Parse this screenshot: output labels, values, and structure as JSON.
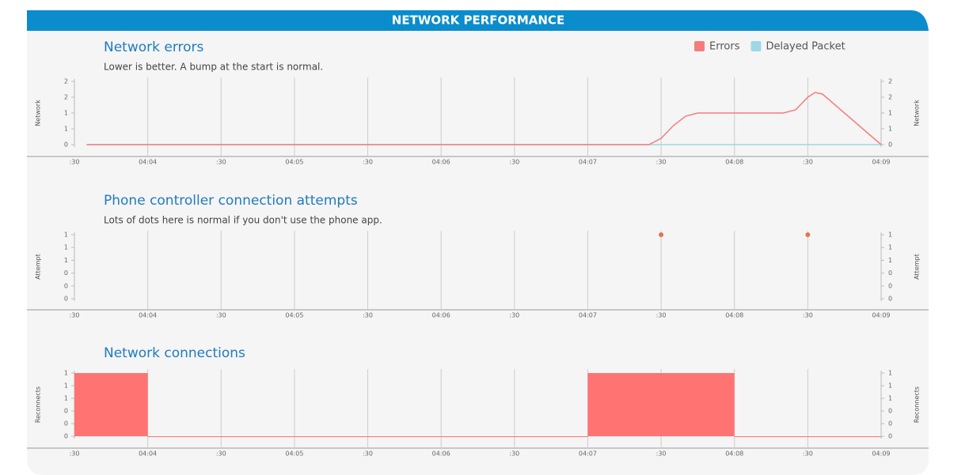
{
  "header": {
    "title": "NETWORK PERFORMANCE"
  },
  "chart_data": [
    {
      "type": "line",
      "title": "Network errors",
      "subtitle": "Lower is better. A bump at the start is normal.",
      "ylabel": "Network",
      "y2label": "Network",
      "legend": "top-right",
      "x": [
        "04:03:35",
        "04:07:25",
        "04:07:30",
        "04:07:35",
        "04:07:40",
        "04:07:45",
        "04:08:20",
        "04:08:25",
        "04:08:30",
        "04:08:33",
        "04:08:36",
        "04:09:00"
      ],
      "series": [
        {
          "name": "Errors",
          "color": "#f47c7c",
          "values": [
            0,
            0,
            0.2,
            0.6,
            0.9,
            1,
            1,
            1.1,
            1.5,
            1.65,
            1.6,
            0
          ]
        },
        {
          "name": "Delayed Packet",
          "color": "#9ed8e6",
          "values": [
            0,
            0,
            0,
            0,
            0,
            0,
            0,
            0,
            0,
            0,
            0,
            0
          ]
        }
      ],
      "xlim": [
        "04:03:30",
        "04:09:00"
      ],
      "xticks": [
        {
          "value": "04:03:30",
          "label": ":30"
        },
        {
          "value": "04:04:00",
          "label": "04:04"
        },
        {
          "value": "04:04:30",
          "label": ":30"
        },
        {
          "value": "04:05:00",
          "label": "04:05"
        },
        {
          "value": "04:05:30",
          "label": ":30"
        },
        {
          "value": "04:06:00",
          "label": "04:06"
        },
        {
          "value": "04:06:30",
          "label": ":30"
        },
        {
          "value": "04:07:00",
          "label": "04:07"
        },
        {
          "value": "04:07:30",
          "label": ":30"
        },
        {
          "value": "04:08:00",
          "label": "04:08"
        },
        {
          "value": "04:08:30",
          "label": ":30"
        },
        {
          "value": "04:09:00",
          "label": "04:09"
        }
      ],
      "ylim": [
        0,
        2
      ],
      "yticks": [
        0,
        {
          "value": 0.5,
          "label": "1"
        },
        1,
        {
          "value": 1.5,
          "label": "2"
        },
        2
      ],
      "y2lim": [
        0,
        2
      ],
      "y2ticks": [
        0,
        {
          "value": 0.5,
          "label": "1"
        },
        1,
        {
          "value": 1.5,
          "label": "2"
        },
        2
      ],
      "grid": true
    },
    {
      "type": "scatter",
      "title": "Phone controller connection attempts",
      "subtitle": "Lots of dots here is normal if you don't use the phone app.",
      "ylabel": "Attempt",
      "y2label": "Attempt",
      "color": "#e8734a",
      "x": [
        "04:07:30",
        "04:08:30"
      ],
      "values": [
        1,
        1
      ],
      "xlim": [
        "04:03:30",
        "04:09:00"
      ],
      "xticks": [
        {
          "value": "04:03:30",
          "label": ":30"
        },
        {
          "value": "04:04:00",
          "label": "04:04"
        },
        {
          "value": "04:04:30",
          "label": ":30"
        },
        {
          "value": "04:05:00",
          "label": "04:05"
        },
        {
          "value": "04:05:30",
          "label": ":30"
        },
        {
          "value": "04:06:00",
          "label": "04:06"
        },
        {
          "value": "04:06:30",
          "label": ":30"
        },
        {
          "value": "04:07:00",
          "label": "04:07"
        },
        {
          "value": "04:07:30",
          "label": ":30"
        },
        {
          "value": "04:08:00",
          "label": "04:08"
        },
        {
          "value": "04:08:30",
          "label": ":30"
        },
        {
          "value": "04:09:00",
          "label": "04:09"
        }
      ],
      "ylim": [
        0,
        1
      ],
      "yticks": [
        0,
        {
          "value": 0.2,
          "label": "0"
        },
        {
          "value": 0.4,
          "label": "0"
        },
        {
          "value": 0.6,
          "label": "1"
        },
        {
          "value": 0.8,
          "label": "1"
        },
        1
      ],
      "y2lim": [
        0,
        1
      ],
      "y2ticks": [
        0,
        {
          "value": 0.2,
          "label": "0"
        },
        {
          "value": 0.4,
          "label": "0"
        },
        {
          "value": 0.6,
          "label": "1"
        },
        {
          "value": 0.8,
          "label": "1"
        },
        1
      ],
      "grid": true
    },
    {
      "type": "area",
      "title": "Network connections",
      "ylabel": "Reconnects",
      "y2label": "Reconnects",
      "color": "#ff7373",
      "step": "post",
      "x": [
        "04:03:30",
        "04:04:00",
        "04:07:00",
        "04:08:00",
        "04:09:00"
      ],
      "values": [
        1,
        0,
        1,
        0,
        0
      ],
      "xlim": [
        "04:03:30",
        "04:09:00"
      ],
      "xticks": [
        {
          "value": "04:03:30",
          "label": ":30"
        },
        {
          "value": "04:04:00",
          "label": "04:04"
        },
        {
          "value": "04:04:30",
          "label": ":30"
        },
        {
          "value": "04:05:00",
          "label": "04:05"
        },
        {
          "value": "04:05:30",
          "label": ":30"
        },
        {
          "value": "04:06:00",
          "label": "04:06"
        },
        {
          "value": "04:06:30",
          "label": ":30"
        },
        {
          "value": "04:07:00",
          "label": "04:07"
        },
        {
          "value": "04:07:30",
          "label": ":30"
        },
        {
          "value": "04:08:00",
          "label": "04:08"
        },
        {
          "value": "04:08:30",
          "label": ":30"
        },
        {
          "value": "04:09:00",
          "label": "04:09"
        }
      ],
      "ylim": [
        0,
        1
      ],
      "yticks": [
        0,
        {
          "value": 0.2,
          "label": "0"
        },
        {
          "value": 0.4,
          "label": "0"
        },
        {
          "value": 0.6,
          "label": "1"
        },
        {
          "value": 0.8,
          "label": "1"
        },
        1
      ],
      "y2lim": [
        0,
        1
      ],
      "y2ticks": [
        0,
        {
          "value": 0.2,
          "label": "0"
        },
        {
          "value": 0.4,
          "label": "0"
        },
        {
          "value": 0.6,
          "label": "1"
        },
        {
          "value": 0.8,
          "label": "1"
        },
        1
      ],
      "grid": true
    }
  ]
}
